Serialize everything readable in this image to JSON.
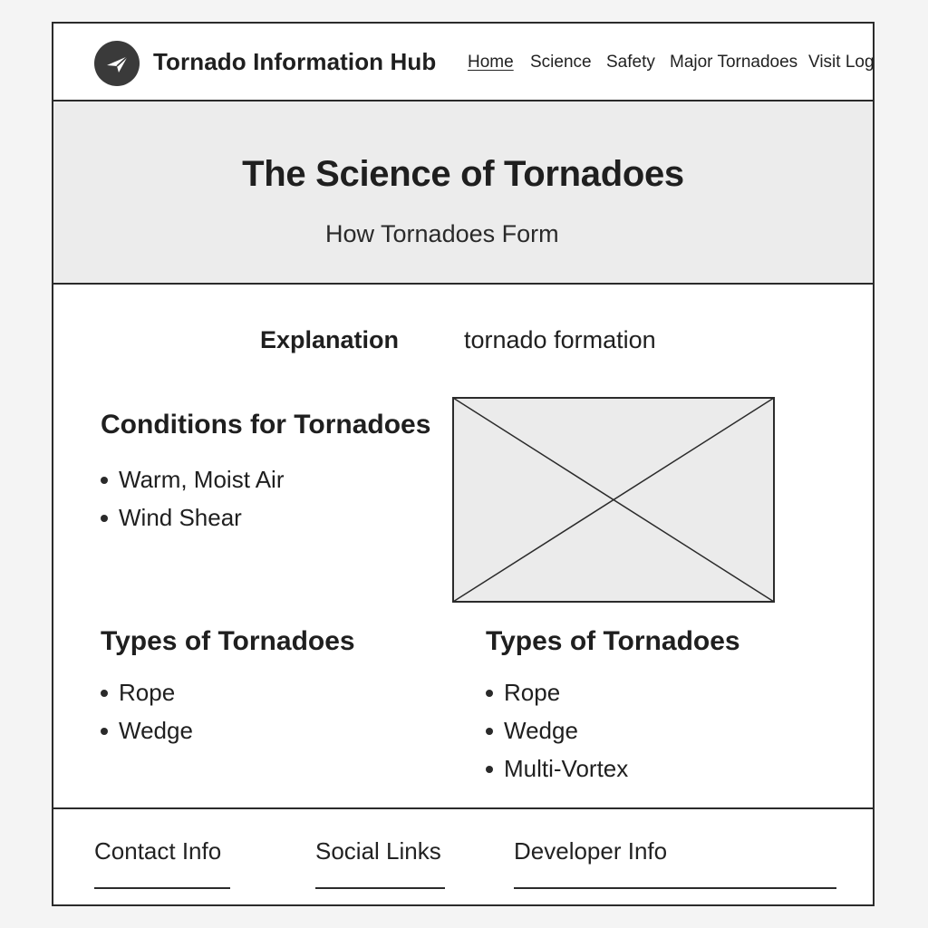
{
  "header": {
    "logo_icon": "paper-plane-icon",
    "title": "Tornado Information Hub",
    "nav": [
      {
        "label": "Home",
        "active": true
      },
      {
        "label": "Science",
        "active": false
      },
      {
        "label": "Safety",
        "active": false
      },
      {
        "label": "Major Tornadoes",
        "active": false
      },
      {
        "label": "Visit Log",
        "active": false
      }
    ]
  },
  "hero": {
    "title": "The Science of Tornadoes",
    "subtitle": "How Tornadoes Form"
  },
  "main": {
    "explanation_label": "Explanation",
    "explanation_text": "tornado formation",
    "conditions": {
      "title": "Conditions for Tornadoes",
      "items": [
        "Warm, Moist Air",
        "Wind Shear"
      ]
    },
    "image_placeholder_icon": "image-placeholder-icon",
    "types_left": {
      "title": "Types of Tornadoes",
      "items": [
        "Rope",
        "Wedge"
      ]
    },
    "types_right": {
      "title": "Types of Tornadoes",
      "items": [
        "Rope",
        "Wedge",
        "Multi-Vortex"
      ]
    }
  },
  "footer": {
    "links": [
      "Contact Info",
      "Social Links",
      "Developer Info"
    ]
  },
  "colors": {
    "border": "#2b2b2b",
    "hero_bg": "#ececec",
    "placeholder_bg": "#ebebeb",
    "logo_bg": "#3a3a3a"
  }
}
